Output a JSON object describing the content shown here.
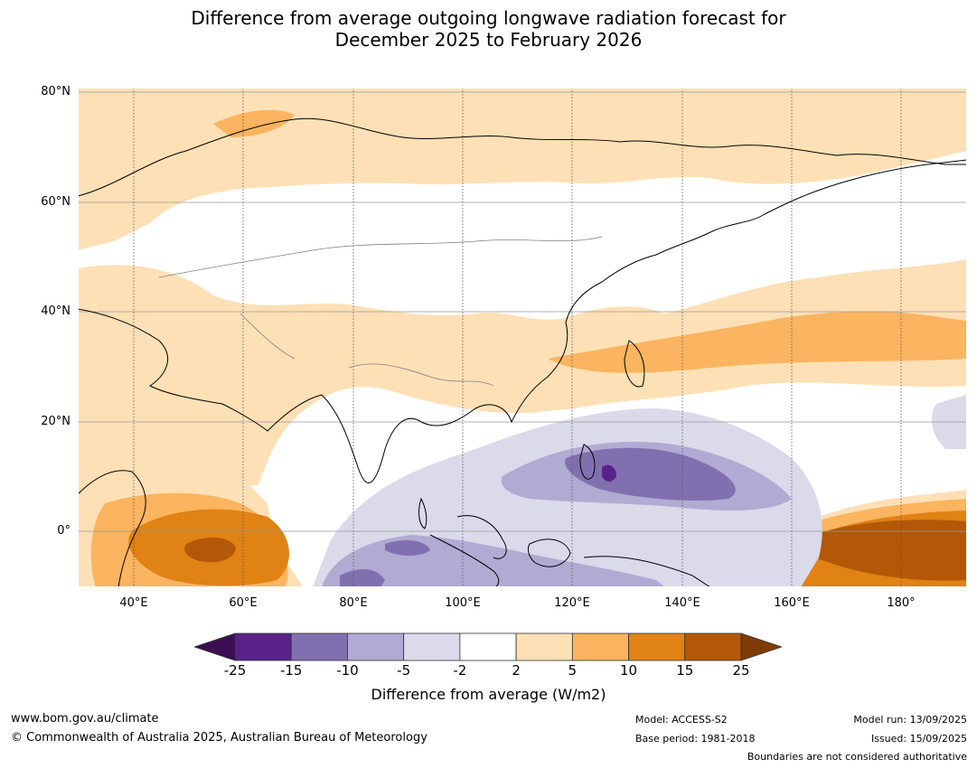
{
  "title_line1": "Difference from average outgoing longwave radiation forecast for",
  "title_line2": "December 2025 to February 2026",
  "lat_labels": [
    "80°N",
    "60°N",
    "40°N",
    "20°N",
    "0°"
  ],
  "lon_labels": [
    "40°E",
    "60°E",
    "80°E",
    "100°E",
    "120°E",
    "140°E",
    "160°E",
    "180°"
  ],
  "colorbar": {
    "ticks": [
      "-25",
      "-15",
      "-10",
      "-5",
      "-2",
      "2",
      "5",
      "10",
      "15",
      "25"
    ],
    "colors": [
      "#3b0f52",
      "#58228a",
      "#8170b0",
      "#b1aad2",
      "#dadaea",
      "#ffffff",
      "#fee0b6",
      "#fbb45f",
      "#e08214",
      "#b35806",
      "#7f3b08"
    ],
    "label": "Difference from average (W/m2)"
  },
  "footer": {
    "website": "www.bom.gov.au/climate",
    "copyright": "© Commonwealth of Australia 2025, Australian Bureau of Meteorology",
    "model": "Model: ACCESS-S2",
    "base_period": "Base period: 1981-2018",
    "model_run": "Model run: 13/09/2025",
    "issued": "Issued: 15/09/2025",
    "disclaimer": "Boundaries are not considered authoritative"
  }
}
